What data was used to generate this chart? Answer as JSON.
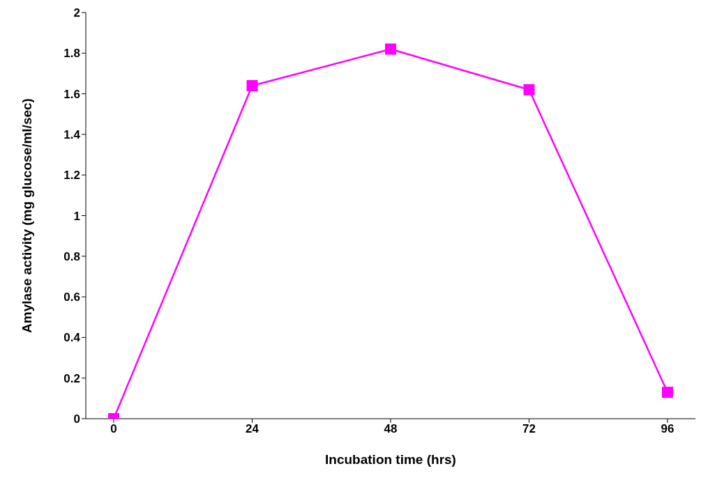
{
  "chart_data": {
    "type": "line",
    "xlabel": "Incubation time (hrs)",
    "ylabel": "Amylase activity (mg glucose/ml/sec)",
    "categories": [
      "0",
      "24",
      "48",
      "72",
      "96"
    ],
    "values": [
      0,
      1.64,
      1.82,
      1.62,
      0.13
    ],
    "color": "#ff00ff",
    "marker": "square",
    "line_style": "solid",
    "ylim": [
      0,
      2
    ],
    "yticks": [
      0,
      0.2,
      0.4,
      0.6,
      0.8,
      1,
      1.2,
      1.4,
      1.6,
      1.8,
      2
    ],
    "grid": false,
    "legend": false
  }
}
